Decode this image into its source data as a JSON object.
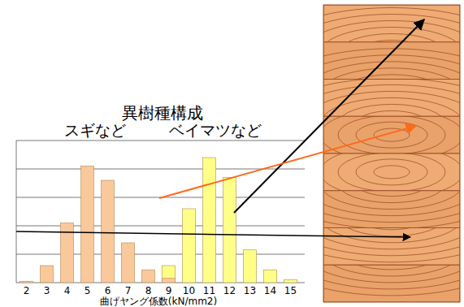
{
  "chart_data": {
    "type": "bar",
    "title": "異樹種構成",
    "categories": [
      "2",
      "3",
      "4",
      "5",
      "6",
      "7",
      "8",
      "9",
      "10",
      "11",
      "12",
      "13",
      "14",
      "15"
    ],
    "series": [
      {
        "name": "スギなど",
        "color": "#f9c89b",
        "values": [
          0.05,
          0.6,
          2.1,
          4.1,
          3.6,
          1.4,
          0.45,
          0.15,
          0,
          0,
          0,
          0,
          0,
          0
        ]
      },
      {
        "name": "ベイマツなど",
        "color": "#ffff88",
        "values": [
          0,
          0,
          0,
          0,
          0,
          0,
          0.05,
          0.6,
          2.6,
          4.4,
          3.7,
          1.15,
          0.45,
          0.1
        ]
      }
    ],
    "x_label": "曲げヤング係数(kN/mm2)",
    "ylim": [
      0,
      5
    ],
    "yticks": [
      0,
      1,
      2,
      3,
      4,
      5
    ],
    "grid": true,
    "tick_labels": "x"
  }
}
